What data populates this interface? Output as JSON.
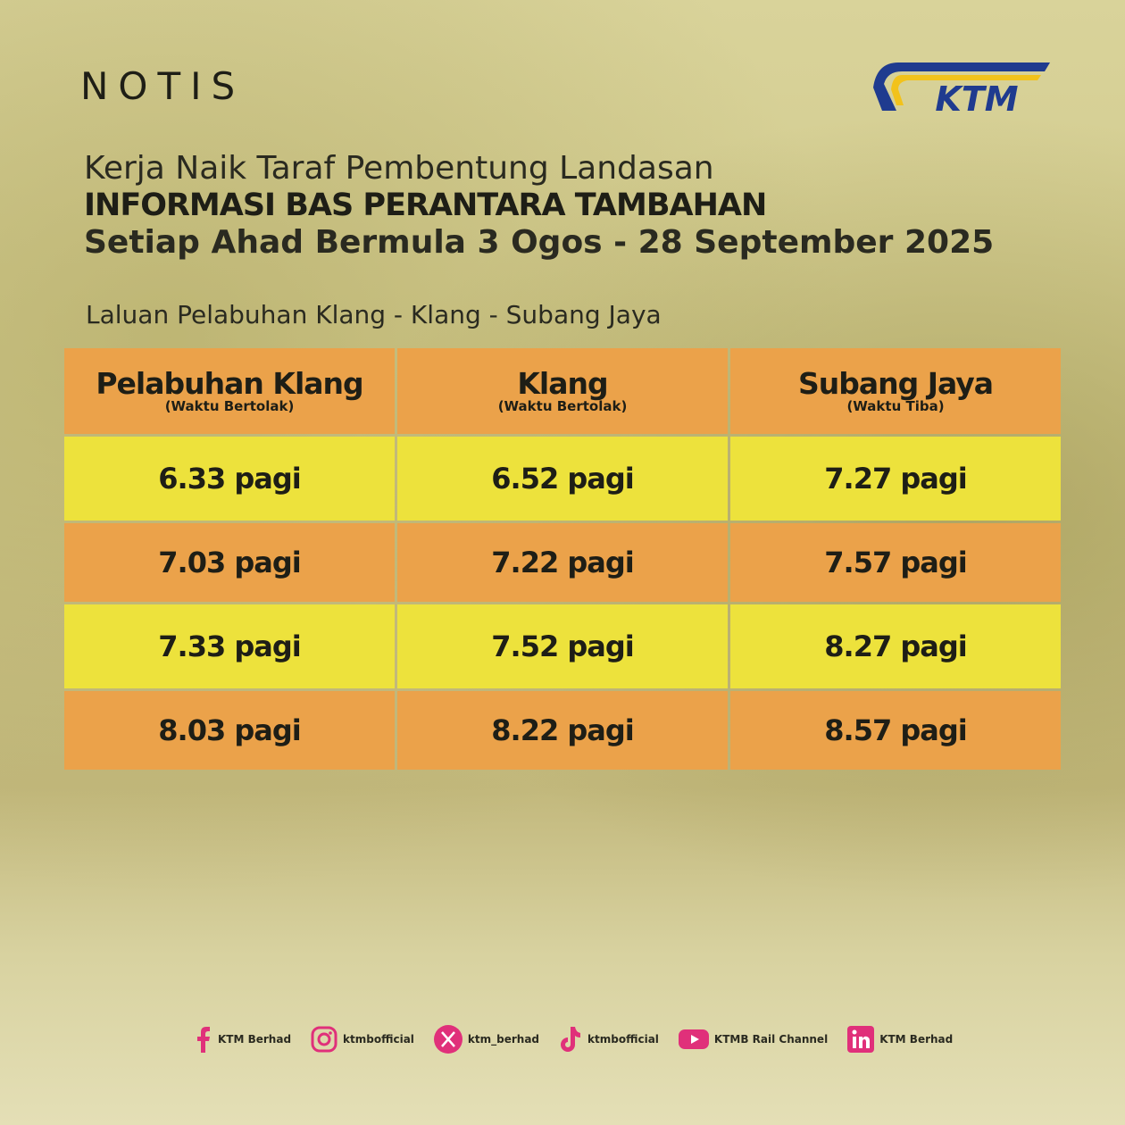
{
  "header": {
    "label": "NOTIS",
    "logo": "KTM"
  },
  "title": {
    "line1": "Kerja Naik Taraf Pembentung Landasan",
    "line2": "INFORMASI BAS PERANTARA TAMBAHAN",
    "line3": "Setiap Ahad Bermula 3 Ogos - 28 September 2025"
  },
  "route": "Laluan Pelabuhan Klang - Klang - Subang Jaya",
  "table": {
    "headers": [
      {
        "name": "Pelabuhan Klang",
        "sub": "(Waktu Bertolak)"
      },
      {
        "name": "Klang",
        "sub": "(Waktu Bertolak)"
      },
      {
        "name": "Subang Jaya",
        "sub": "(Waktu Tiba)"
      }
    ],
    "rows": [
      [
        "6.33 pagi",
        "6.52 pagi",
        "7.27 pagi"
      ],
      [
        "7.03 pagi",
        "7.22 pagi",
        "7.57 pagi"
      ],
      [
        "7.33 pagi",
        "7.52 pagi",
        "8.27 pagi"
      ],
      [
        "8.03 pagi",
        "8.22 pagi",
        "8.57 pagi"
      ]
    ]
  },
  "socials": [
    "KTM Berhad",
    "ktmbofficial",
    "ktm_berhad",
    "ktmbofficial",
    "KTMB Rail Channel",
    "KTM Berhad"
  ]
}
